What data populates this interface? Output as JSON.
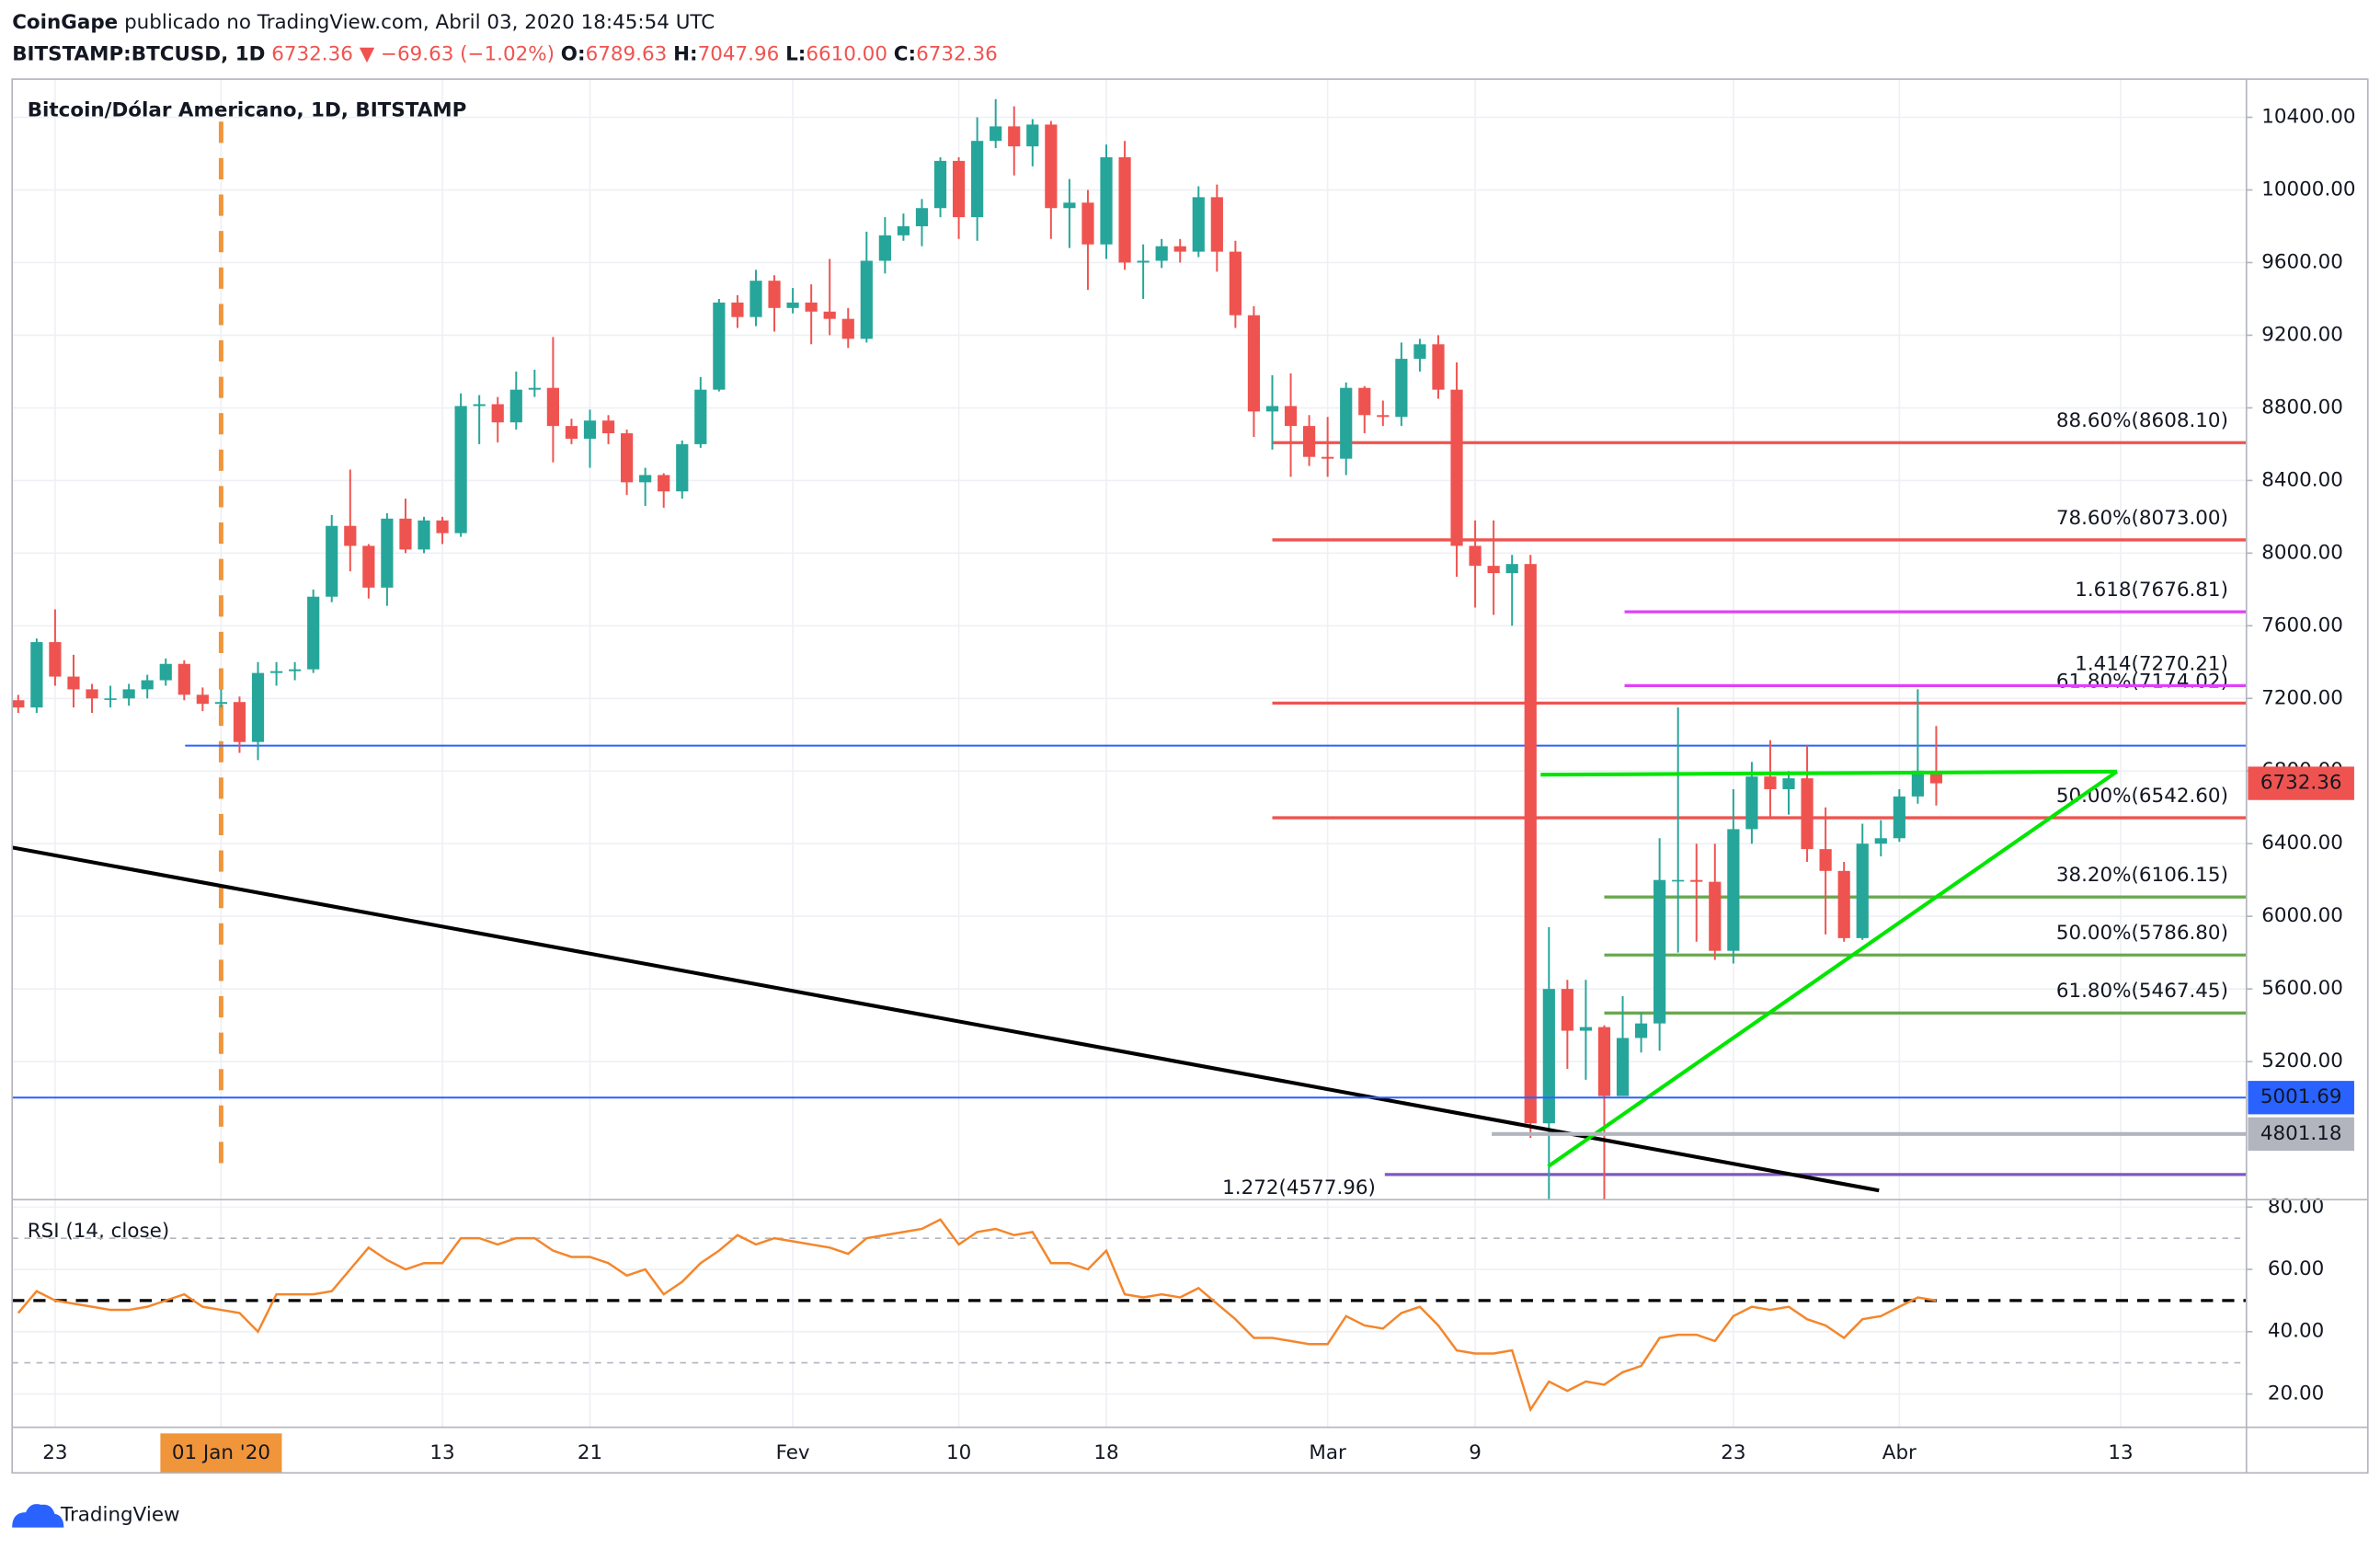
{
  "header": {
    "publisher": "CoinGape",
    "published": "publicado no TradingView.com, Abril 03, 2020 18:45:54 UTC",
    "symbol": "BITSTAMP:BTCUSD, 1D",
    "last": "6732.36",
    "change": "▼ −69.63 (−1.02%)",
    "ohlc": [
      {
        "label": "O:",
        "value": "6789.63"
      },
      {
        "label": "H:",
        "value": "7047.96"
      },
      {
        "label": "L:",
        "value": "6610.00"
      },
      {
        "label": "C:",
        "value": "6732.36"
      }
    ]
  },
  "footer": "TradingView",
  "chart_data": [
    {
      "type": "candlestick",
      "title": "Bitcoin/Dólar Americano, 1D, BITSTAMP",
      "up_color": "#26a69a",
      "down_color": "#ef5350",
      "grid": true,
      "xlim": [
        -0.33,
        120.82
      ],
      "xticks": [
        {
          "value": 2,
          "label": "23"
        },
        {
          "value": 11,
          "label": "01 Jan '20"
        },
        {
          "value": 23,
          "label": "13"
        },
        {
          "value": 31,
          "label": "21"
        },
        {
          "value": 42,
          "label": "Fev"
        },
        {
          "value": 51,
          "label": "10"
        },
        {
          "value": 59,
          "label": "18"
        },
        {
          "value": 71,
          "label": "Mar"
        },
        {
          "value": 79,
          "label": "9"
        },
        {
          "value": 93,
          "label": "23"
        },
        {
          "value": 102,
          "label": "Abr"
        },
        {
          "value": 114,
          "label": "13"
        }
      ],
      "ylim": [
        4440,
        10610
      ],
      "yticks": [
        {
          "value": 5200,
          "label": "5200.00"
        },
        {
          "value": 5600,
          "label": "5600.00"
        },
        {
          "value": 6000,
          "label": "6000.00"
        },
        {
          "value": 6400,
          "label": "6400.00"
        },
        {
          "value": 6800,
          "label": "6800.00"
        },
        {
          "value": 7200,
          "label": "7200.00"
        },
        {
          "value": 7600,
          "label": "7600.00"
        },
        {
          "value": 8000,
          "label": "8000.00"
        },
        {
          "value": 8400,
          "label": "8400.00"
        },
        {
          "value": 8800,
          "label": "8800.00"
        },
        {
          "value": 9200,
          "label": "9200.00"
        },
        {
          "value": 9600,
          "label": "9600.00"
        },
        {
          "value": 10000,
          "label": "10000.00"
        },
        {
          "value": 10400,
          "label": "10400.00"
        }
      ],
      "open": [
        7190,
        7150,
        7510,
        7320,
        7250,
        7200,
        7200,
        7250,
        7300,
        7390,
        7220,
        7170,
        7180,
        6960,
        7340,
        7350,
        7360,
        7760,
        8150,
        8040,
        7810,
        8190,
        8020,
        8180,
        8110,
        8810,
        8820,
        8720,
        8900,
        8910,
        8700,
        8630,
        8730,
        8660,
        8390,
        8430,
        8340,
        8600,
        8900,
        9380,
        9300,
        9500,
        9350,
        9380,
        9330,
        9290,
        9180,
        9610,
        9750,
        9800,
        9900,
        10160,
        9850,
        10270,
        10350,
        10240,
        10360,
        9900,
        9930,
        9700,
        10180,
        9600,
        9610,
        9690,
        9660,
        9960,
        9660,
        9310,
        8780,
        8810,
        8700,
        8530,
        8520,
        8910,
        8760,
        8750,
        9070,
        9150,
        8900,
        8040,
        7930,
        7890,
        7940,
        4860,
        5600,
        5370,
        5390,
        5010,
        5330,
        5410,
        6200,
        6200,
        6190,
        5810,
        6480,
        6770,
        6700,
        6760,
        6370,
        6250,
        5880,
        6400,
        6430,
        6660,
        6789.63
      ],
      "high": [
        7220,
        7530,
        7690,
        7440,
        7280,
        7270,
        7280,
        7330,
        7420,
        7410,
        7260,
        7250,
        7210,
        7400,
        7400,
        7400,
        7800,
        8210,
        8460,
        8050,
        8220,
        8300,
        8200,
        8200,
        8880,
        8870,
        8860,
        9000,
        9010,
        9190,
        8740,
        8790,
        8760,
        8680,
        8470,
        8440,
        8620,
        8970,
        9400,
        9420,
        9560,
        9530,
        9460,
        9480,
        9620,
        9350,
        9770,
        9850,
        9870,
        9950,
        10180,
        10180,
        10400,
        10500,
        10460,
        10390,
        10380,
        10060,
        10000,
        10250,
        10270,
        9700,
        9730,
        9730,
        10020,
        10030,
        9720,
        9360,
        8980,
        8990,
        8760,
        8750,
        8940,
        8920,
        8840,
        9160,
        9180,
        9200,
        9050,
        8180,
        8180,
        7990,
        7990,
        5940,
        5650,
        5650,
        5400,
        5560,
        5470,
        6430,
        7150,
        6400,
        6400,
        6700,
        6850,
        6970,
        6800,
        6940,
        6600,
        6300,
        6510,
        6530,
        6700,
        7250,
        7047.96
      ],
      "low": [
        7120,
        7120,
        7270,
        7150,
        7120,
        7150,
        7160,
        7200,
        7270,
        7190,
        7130,
        7150,
        6900,
        6860,
        7270,
        7300,
        7340,
        7730,
        7900,
        7750,
        7710,
        8000,
        8000,
        8050,
        8090,
        8600,
        8610,
        8680,
        8860,
        8500,
        8600,
        8470,
        8600,
        8320,
        8260,
        8250,
        8300,
        8580,
        8890,
        9240,
        9250,
        9220,
        9320,
        9150,
        9200,
        9130,
        9160,
        9540,
        9720,
        9690,
        9850,
        9730,
        9720,
        10230,
        10080,
        10130,
        9730,
        9680,
        9450,
        9620,
        9560,
        9400,
        9570,
        9600,
        9630,
        9550,
        9240,
        8640,
        8570,
        8420,
        8480,
        8420,
        8430,
        8660,
        8700,
        8700,
        9000,
        8850,
        7870,
        7700,
        7660,
        7600,
        4780,
        4400,
        5160,
        5100,
        4400,
        5030,
        5250,
        5260,
        5800,
        5860,
        5760,
        5740,
        6400,
        6550,
        6560,
        6300,
        5900,
        5860,
        5870,
        6330,
        6410,
        6620,
        6610
      ],
      "close": [
        7150,
        7510,
        7320,
        7250,
        7200,
        7200,
        7250,
        7300,
        7390,
        7220,
        7170,
        7180,
        6960,
        7340,
        7350,
        7360,
        7760,
        8150,
        8040,
        7810,
        8190,
        8020,
        8180,
        8110,
        8810,
        8820,
        8720,
        8900,
        8910,
        8700,
        8630,
        8730,
        8660,
        8390,
        8430,
        8340,
        8600,
        8900,
        9380,
        9300,
        9500,
        9350,
        9380,
        9330,
        9290,
        9180,
        9610,
        9750,
        9800,
        9900,
        10160,
        9850,
        10270,
        10350,
        10240,
        10360,
        9900,
        9930,
        9700,
        10180,
        9600,
        9610,
        9690,
        9660,
        9960,
        9660,
        9310,
        8780,
        8810,
        8700,
        8530,
        8520,
        8910,
        8760,
        8750,
        9070,
        9150,
        8900,
        8040,
        7930,
        7890,
        7940,
        4860,
        5600,
        5370,
        5390,
        5010,
        5330,
        5410,
        6200,
        6200,
        6190,
        5810,
        6480,
        6770,
        6700,
        6760,
        6370,
        6250,
        5880,
        6400,
        6430,
        6660,
        6802,
        6732.36
      ],
      "levels": [
        {
          "label": "88.60%(8608.10)",
          "value": 8608.1,
          "color": "#ef5350",
          "start": 68.0
        },
        {
          "label": "78.60%(8073.00)",
          "value": 8073.0,
          "color": "#ef5350",
          "start": 68.0
        },
        {
          "label": "61.80%(7174.02)",
          "value": 7174.02,
          "color": "#ef5350",
          "start": 68.0
        },
        {
          "label": "50.00%(6542.60)",
          "value": 6542.6,
          "color": "#ef5350",
          "start": 68.0
        },
        {
          "label": "1.618(7676.81)",
          "value": 7676.81,
          "color": "#e040fb",
          "start": 87.1
        },
        {
          "label": "1.414(7270.21)",
          "value": 7270.21,
          "color": "#e040fb",
          "start": 87.1
        },
        {
          "label": "38.20%(6106.15)",
          "value": 6106.15,
          "color": "#6aa84f",
          "start": 86.0
        },
        {
          "label": "50.00%(5786.80)",
          "value": 5786.8,
          "color": "#6aa84f",
          "start": 86.0
        },
        {
          "label": "61.80%(5467.45)",
          "value": 5467.45,
          "color": "#6aa84f",
          "start": 86.0
        },
        {
          "label": "1.272(4577.96)",
          "value": 4577.96,
          "color": "#7e57c2",
          "start": 74.1,
          "label_position": "left"
        }
      ],
      "price_lines": [
        {
          "value": 5001.69,
          "color": "#2962ff",
          "text_color": "#ffffff",
          "start": -0.33
        },
        {
          "value": 4801.18,
          "color": "#b2b5be",
          "text_color": "#000000",
          "start": 79.9
        }
      ],
      "hlines": [
        {
          "value": 6940,
          "color": "#2962ff",
          "start": 9.05
        }
      ],
      "last_price": 6732.36,
      "last_price_color": "#ef5350",
      "trendlines": [
        {
          "x": [
            -0.33,
            100.9
          ],
          "y": [
            6379,
            4490
          ],
          "color": "#000000"
        },
        {
          "x": [
            82.55,
            113.8
          ],
          "y": [
            6780,
            6797
          ],
          "color": "#00e600"
        },
        {
          "x": [
            82.96,
            113.8
          ],
          "y": [
            4623,
            6797
          ],
          "color": "#00e600"
        }
      ],
      "vlines": [
        {
          "x": 11,
          "color": "#f0953a"
        }
      ]
    },
    {
      "type": "line",
      "title": "RSI (14, close)",
      "color": "#f4862b",
      "xlim": [
        -0.33,
        120.82
      ],
      "ylim": [
        9.3,
        82.4
      ],
      "yticks": [
        {
          "value": 20,
          "label": "20.00"
        },
        {
          "value": 40,
          "label": "40.00"
        },
        {
          "value": 60,
          "label": "60.00"
        },
        {
          "value": 80,
          "label": "80.00"
        }
      ],
      "hlines": [
        {
          "value": 70,
          "color": "#b2b5be"
        },
        {
          "value": 30,
          "color": "#b2b5be"
        },
        {
          "value": 50,
          "color": "#000000"
        }
      ],
      "values": [
        46,
        53,
        50,
        49,
        48,
        47,
        47,
        48,
        50,
        52,
        48,
        47,
        46,
        40,
        52,
        52,
        52,
        53,
        60,
        67,
        63,
        60,
        62,
        62,
        70,
        70,
        68,
        70,
        70,
        66,
        64,
        64,
        62,
        58,
        60,
        52,
        56,
        62,
        66,
        71,
        68,
        70,
        69,
        68,
        67,
        65,
        70,
        71,
        72,
        73,
        76,
        68,
        72,
        73,
        71,
        72,
        62,
        62,
        60,
        66,
        52,
        51,
        52,
        51,
        54,
        49,
        44,
        38,
        38,
        37,
        36,
        36,
        45,
        42,
        41,
        46,
        48,
        42,
        34,
        33,
        33,
        34,
        15,
        24,
        21,
        24,
        23,
        27,
        29,
        38,
        39,
        39,
        37,
        45,
        48,
        47,
        48,
        44,
        42,
        38,
        44,
        45,
        48,
        51,
        50
      ]
    }
  ]
}
